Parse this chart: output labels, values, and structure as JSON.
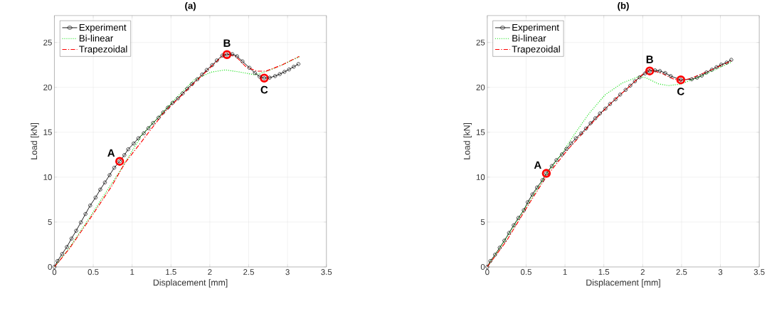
{
  "chart_data": [
    {
      "type": "line",
      "title": "(a)",
      "xlabel": "Displacement [mm]",
      "ylabel": "Load [kN]",
      "xlim": [
        0,
        3.5
      ],
      "ylim": [
        0,
        28
      ],
      "xticks": [
        0,
        0.5,
        1,
        1.5,
        2,
        2.5,
        3,
        3.5
      ],
      "yticks": [
        0,
        5,
        10,
        15,
        20,
        25
      ],
      "grid": true,
      "legend": "top left",
      "series": [
        {
          "name": "Experiment",
          "color": "#000000",
          "marker": "circle",
          "line_style": "solid",
          "x": [
            0,
            0.04,
            0.1,
            0.16,
            0.22,
            0.28,
            0.34,
            0.4,
            0.46,
            0.53,
            0.59,
            0.65,
            0.71,
            0.77,
            0.84,
            0.9,
            0.95,
            1.02,
            1.08,
            1.15,
            1.21,
            1.27,
            1.34,
            1.4,
            1.46,
            1.52,
            1.59,
            1.65,
            1.71,
            1.77,
            1.84,
            1.9,
            1.96,
            2.03,
            2.09,
            2.16,
            2.22,
            2.29,
            2.35,
            2.42,
            2.51,
            2.58,
            2.64,
            2.7,
            2.77,
            2.84,
            2.9,
            2.96,
            3.02,
            3.08,
            3.14
          ],
          "values": [
            0,
            0.66,
            1.45,
            2.22,
            3.16,
            4.03,
            4.96,
            5.9,
            6.84,
            7.73,
            8.62,
            9.41,
            10.23,
            11.05,
            11.76,
            12.46,
            13.11,
            13.75,
            14.33,
            14.89,
            15.46,
            16.04,
            16.63,
            17.21,
            17.75,
            18.27,
            18.78,
            19.32,
            19.86,
            20.37,
            20.91,
            21.43,
            21.94,
            22.48,
            23.0,
            23.54,
            23.65,
            23.7,
            23.47,
            22.9,
            22.18,
            21.6,
            21.2,
            21.03,
            21.08,
            21.26,
            21.48,
            21.73,
            22.0,
            22.3,
            22.6
          ]
        },
        {
          "name": "Bi-linear",
          "color": "#00dd00",
          "marker": "none",
          "line_style": "dotted",
          "x": [
            0,
            0.19,
            0.46,
            0.67,
            0.83,
            1.13,
            1.53,
            1.8,
            2.02,
            2.2,
            2.39,
            2.58,
            2.74,
            2.93,
            3.15
          ],
          "values": [
            0,
            2.1,
            5.6,
            8.4,
            10.5,
            14.75,
            18.5,
            20.85,
            21.7,
            21.95,
            21.7,
            21.4,
            21.8,
            22.5,
            23.4
          ]
        },
        {
          "name": "Trapezoidal",
          "color": "#ff0000",
          "marker": "none",
          "line_style": "dashdot",
          "x": [
            0,
            0.19,
            0.46,
            0.73,
            0.91,
            1.13,
            1.4,
            1.67,
            1.94,
            2.15,
            2.22,
            2.34,
            2.47,
            2.61,
            2.72,
            2.93,
            3.15
          ],
          "values": [
            0,
            2.0,
            5.4,
            8.9,
            11.6,
            14.05,
            17.1,
            19.4,
            21.66,
            23.4,
            23.8,
            23.4,
            22.25,
            21.8,
            21.8,
            22.5,
            23.45
          ]
        },
        {
          "type": "scatter",
          "color": "#ff0000",
          "marker": "circle",
          "x": [
            0.84,
            2.22,
            2.7
          ],
          "values": [
            11.76,
            23.65,
            21.03
          ]
        }
      ],
      "annotations": [
        {
          "text": "A",
          "x": 0.84,
          "y": 11.76
        },
        {
          "text": "B",
          "x": 2.22,
          "y": 23.65
        },
        {
          "text": "C",
          "x": 2.7,
          "y": 21.03
        }
      ]
    },
    {
      "type": "line",
      "title": "(b)",
      "xlabel": "Displacement [mm]",
      "ylabel": "Load [kN]",
      "xlim": [
        0,
        3.5
      ],
      "ylim": [
        0,
        28
      ],
      "xticks": [
        0,
        0.5,
        1,
        1.5,
        2,
        2.5,
        3,
        3.5
      ],
      "yticks": [
        0,
        5,
        10,
        15,
        20,
        25
      ],
      "grid": true,
      "legend": "top left",
      "series": [
        {
          "name": "Experiment",
          "color": "#000000",
          "marker": "circle",
          "line_style": "solid",
          "x": [
            0,
            0.04,
            0.1,
            0.16,
            0.22,
            0.28,
            0.34,
            0.4,
            0.47,
            0.52,
            0.58,
            0.64,
            0.71,
            0.76,
            0.83,
            0.89,
            0.96,
            1.02,
            1.08,
            1.14,
            1.21,
            1.27,
            1.33,
            1.39,
            1.45,
            1.52,
            1.58,
            1.65,
            1.71,
            1.78,
            1.84,
            1.9,
            1.96,
            2.03,
            2.09,
            2.16,
            2.22,
            2.29,
            2.36,
            2.49,
            2.63,
            2.7,
            2.76,
            2.82,
            2.89,
            2.95,
            3.01,
            3.08,
            3.14
          ],
          "values": [
            0,
            0.66,
            1.36,
            2.15,
            2.93,
            3.79,
            4.64,
            5.46,
            6.32,
            7.21,
            8.08,
            8.85,
            9.67,
            10.42,
            11.24,
            11.9,
            12.53,
            13.16,
            13.77,
            14.33,
            14.89,
            15.41,
            16.02,
            16.56,
            17.1,
            17.63,
            18.15,
            18.67,
            19.2,
            19.72,
            20.19,
            20.68,
            21.12,
            21.55,
            21.83,
            21.9,
            21.83,
            21.6,
            21.26,
            20.84,
            20.9,
            21.08,
            21.31,
            21.66,
            21.97,
            22.25,
            22.53,
            22.76,
            23.07
          ]
        },
        {
          "name": "Bi-linear",
          "color": "#00dd00",
          "marker": "none",
          "line_style": "dotted",
          "x": [
            0,
            0.25,
            0.52,
            0.76,
            0.98,
            1.12,
            1.31,
            1.52,
            1.74,
            1.95,
            2.04,
            2.2,
            2.33,
            2.49,
            2.74,
            3.14
          ],
          "values": [
            0,
            3.28,
            7.03,
            10.3,
            12.9,
            14.75,
            17.1,
            19.2,
            20.5,
            21.2,
            21.08,
            20.4,
            20.2,
            20.37,
            21.2,
            22.8
          ]
        },
        {
          "name": "Trapezoidal",
          "color": "#ff0000",
          "marker": "none",
          "line_style": "dashdot",
          "x": [
            0,
            0.25,
            0.52,
            0.76,
            1.04,
            1.31,
            1.58,
            1.85,
            2.04,
            2.09,
            2.25,
            2.39,
            2.49,
            2.63,
            2.87,
            3.14
          ],
          "values": [
            0,
            2.93,
            6.79,
            10.07,
            13.11,
            15.7,
            18.15,
            20.26,
            21.78,
            21.97,
            21.55,
            20.96,
            20.73,
            21.03,
            21.9,
            22.95
          ]
        },
        {
          "type": "scatter",
          "color": "#ff0000",
          "marker": "circle",
          "x": [
            0.76,
            2.09,
            2.49
          ],
          "values": [
            10.42,
            21.83,
            20.84
          ]
        }
      ],
      "annotations": [
        {
          "text": "A",
          "x": 0.76,
          "y": 10.42
        },
        {
          "text": "B",
          "x": 2.09,
          "y": 21.83
        },
        {
          "text": "C",
          "x": 2.49,
          "y": 20.84
        }
      ]
    }
  ]
}
